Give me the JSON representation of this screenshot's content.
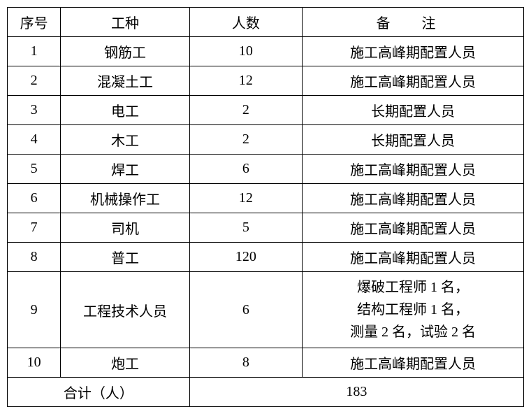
{
  "table": {
    "columns": {
      "seq": "序号",
      "type": "工种",
      "count": "人数",
      "remark": "备 注"
    },
    "col_widths": {
      "seq": 70,
      "type": 185,
      "count": 160,
      "remark": 325
    },
    "header_bg": "#ffffff",
    "border_color": "#000000",
    "font_family": "SimSun",
    "font_size": 20,
    "text_color": "#000000",
    "cell_align": "center",
    "rows": [
      {
        "seq": "1",
        "type": "钢筋工",
        "count": "10",
        "remark": "施工高峰期配置人员"
      },
      {
        "seq": "2",
        "type": "混凝土工",
        "count": "12",
        "remark": "施工高峰期配置人员"
      },
      {
        "seq": "3",
        "type": "电工",
        "count": "2",
        "remark": "长期配置人员"
      },
      {
        "seq": "4",
        "type": "木工",
        "count": "2",
        "remark": "长期配置人员"
      },
      {
        "seq": "5",
        "type": "焊工",
        "count": "6",
        "remark": "施工高峰期配置人员"
      },
      {
        "seq": "6",
        "type": "机械操作工",
        "count": "12",
        "remark": "施工高峰期配置人员"
      },
      {
        "seq": "7",
        "type": "司机",
        "count": "5",
        "remark": "施工高峰期配置人员"
      },
      {
        "seq": "8",
        "type": "普工",
        "count": "120",
        "remark": "施工高峰期配置人员"
      },
      {
        "seq": "9",
        "type": "工程技术人员",
        "count": "6",
        "remark_lines": [
          "爆破工程师 1 名，",
          "结构工程师 1 名，",
          "测量 2 名，试验 2 名"
        ]
      },
      {
        "seq": "10",
        "type": "炮工",
        "count": "8",
        "remark": "施工高峰期配置人员"
      }
    ],
    "total": {
      "label": "合计（人）",
      "value": "183"
    }
  }
}
